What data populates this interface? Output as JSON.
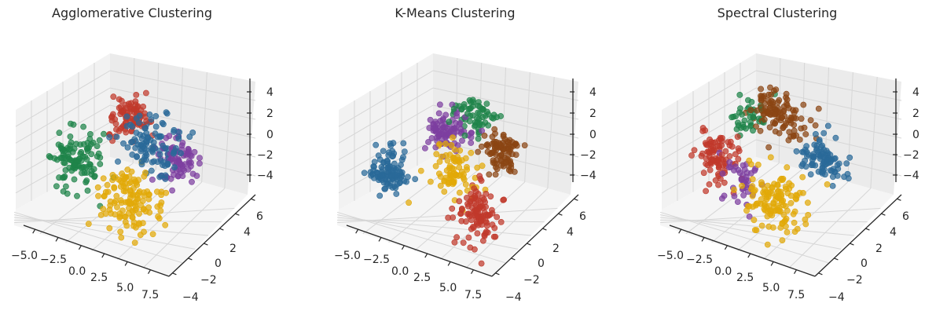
{
  "chart_data": [
    {
      "type": "scatter",
      "title": "Agglomerative Clustering",
      "xticks": [
        "−5.0",
        "−2.5",
        "0.0",
        "2.5",
        "5.0",
        "7.5"
      ],
      "yticks": [
        "−4",
        "−2",
        "0",
        "2",
        "4",
        "6"
      ],
      "zticks": [
        "−4",
        "−2",
        "0",
        "2",
        "4"
      ],
      "xlim": [
        -5.5,
        9
      ],
      "ylim": [
        -4.5,
        7
      ],
      "zlim": [
        -5.5,
        5.5
      ],
      "grid": true,
      "series": [
        {
          "color": "#2a6a99",
          "center": [
            4.5,
            2.0,
            1.5
          ],
          "spread": [
            1.4,
            1.2,
            0.9
          ],
          "count": 110
        },
        {
          "color": "#c0392b",
          "center": [
            1.5,
            4.0,
            2.0
          ],
          "spread": [
            1.0,
            0.8,
            0.8
          ],
          "count": 90
        },
        {
          "color": "#7d3fa0",
          "center": [
            6.5,
            3.0,
            0.5
          ],
          "spread": [
            1.0,
            0.9,
            0.8
          ],
          "count": 80
        },
        {
          "color": "#1e8449",
          "center": [
            -2.5,
            1.0,
            -1.0
          ],
          "spread": [
            1.2,
            1.2,
            1.0
          ],
          "count": 110
        },
        {
          "color": "#e2a908",
          "center": [
            3.5,
            -1.0,
            -1.5
          ],
          "spread": [
            1.5,
            1.2,
            1.0
          ],
          "count": 130
        }
      ]
    },
    {
      "type": "scatter",
      "title": "K-Means Clustering",
      "xticks": [
        "−5.0",
        "−2.5",
        "0.0",
        "2.5",
        "5.0",
        "7.5"
      ],
      "yticks": [
        "−4",
        "−2",
        "0",
        "2",
        "4",
        "6"
      ],
      "zticks": [
        "−4",
        "−2",
        "0",
        "2",
        "4"
      ],
      "xlim": [
        -5.5,
        9
      ],
      "ylim": [
        -4.5,
        7
      ],
      "zlim": [
        -5.5,
        5.5
      ],
      "grid": true,
      "series": [
        {
          "color": "#7d3fa0",
          "center": [
            1.0,
            3.5,
            1.0
          ],
          "spread": [
            1.0,
            0.8,
            0.8
          ],
          "count": 90
        },
        {
          "color": "#1e8449",
          "center": [
            3.0,
            5.0,
            2.0
          ],
          "spread": [
            1.0,
            0.7,
            0.7
          ],
          "count": 60
        },
        {
          "color": "#8b4513",
          "center": [
            6.0,
            4.0,
            0.5
          ],
          "spread": [
            1.0,
            0.9,
            0.8
          ],
          "count": 90
        },
        {
          "color": "#2a6a99",
          "center": [
            -3.5,
            0.5,
            -2.0
          ],
          "spread": [
            0.9,
            0.9,
            0.8
          ],
          "count": 110
        },
        {
          "color": "#e2a908",
          "center": [
            2.5,
            1.0,
            -0.5
          ],
          "spread": [
            1.1,
            1.0,
            0.9
          ],
          "count": 80
        },
        {
          "color": "#c0392b",
          "center": [
            6.0,
            -1.0,
            -2.0
          ],
          "spread": [
            1.0,
            1.0,
            1.0
          ],
          "count": 110
        }
      ]
    },
    {
      "type": "scatter",
      "title": "Spectral Clustering",
      "xticks": [
        "−5.0",
        "−2.5",
        "0.0",
        "2.5",
        "5.0",
        "7.5"
      ],
      "yticks": [
        "−4",
        "−2",
        "0",
        "2",
        "4",
        "6"
      ],
      "zticks": [
        "−4",
        "−2",
        "0",
        "2",
        "4"
      ],
      "xlim": [
        -5.5,
        9
      ],
      "ylim": [
        -4.5,
        7
      ],
      "zlim": [
        -5.5,
        5.5
      ],
      "grid": true,
      "series": [
        {
          "color": "#8b4513",
          "center": [
            1.5,
            4.5,
            2.0
          ],
          "spread": [
            1.4,
            0.9,
            0.8
          ],
          "count": 110
        },
        {
          "color": "#2a6a99",
          "center": [
            6.5,
            3.0,
            0.5
          ],
          "spread": [
            1.0,
            0.9,
            0.8
          ],
          "count": 90
        },
        {
          "color": "#c0392b",
          "center": [
            -3.0,
            1.0,
            -1.0
          ],
          "spread": [
            1.0,
            1.0,
            1.0
          ],
          "count": 90
        },
        {
          "color": "#7d3fa0",
          "center": [
            -0.5,
            0.5,
            -2.0
          ],
          "spread": [
            0.8,
            0.8,
            0.8
          ],
          "count": 40
        },
        {
          "color": "#1e8449",
          "center": [
            -1.5,
            4.0,
            1.0
          ],
          "spread": [
            0.8,
            0.8,
            0.7
          ],
          "count": 40
        },
        {
          "color": "#e2a908",
          "center": [
            3.5,
            -1.0,
            -1.5
          ],
          "spread": [
            1.5,
            1.2,
            1.0
          ],
          "count": 130
        }
      ]
    }
  ]
}
